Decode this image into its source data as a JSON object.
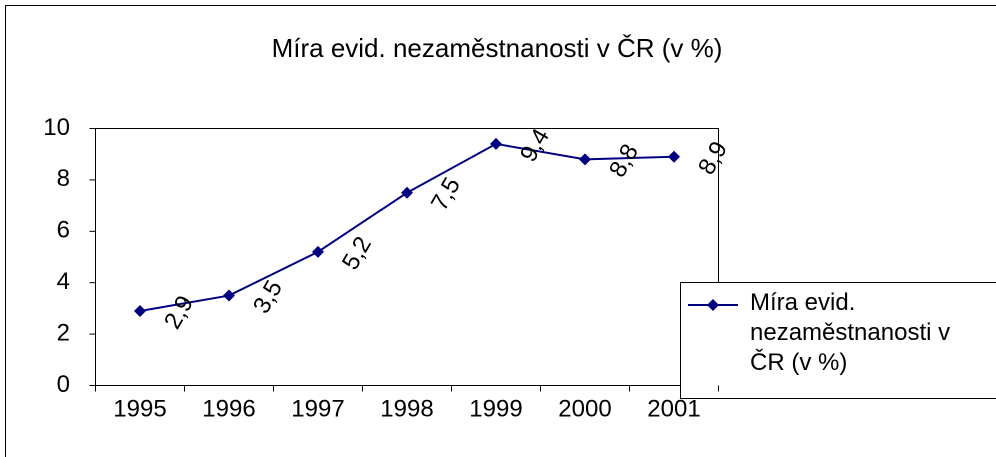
{
  "chart_data": {
    "type": "line",
    "title": "Míra evid. nezaměstnanosti v ČR (v %)",
    "categories": [
      "1995",
      "1996",
      "1997",
      "1998",
      "1999",
      "2000",
      "2001"
    ],
    "series": [
      {
        "name": "Míra evid. nezaměstnanosti v ČR (v %)",
        "color": "#000080",
        "values": [
          2.9,
          3.5,
          5.2,
          7.5,
          9.4,
          8.8,
          8.9
        ],
        "value_labels": [
          "2,9",
          "3,5",
          "5,2",
          "7,5",
          "9,4",
          "8,8",
          "8,9"
        ]
      }
    ],
    "ylim": [
      0,
      10
    ],
    "yticks": [
      0,
      2,
      4,
      6,
      8,
      10
    ],
    "grid": false,
    "legend": "right"
  }
}
